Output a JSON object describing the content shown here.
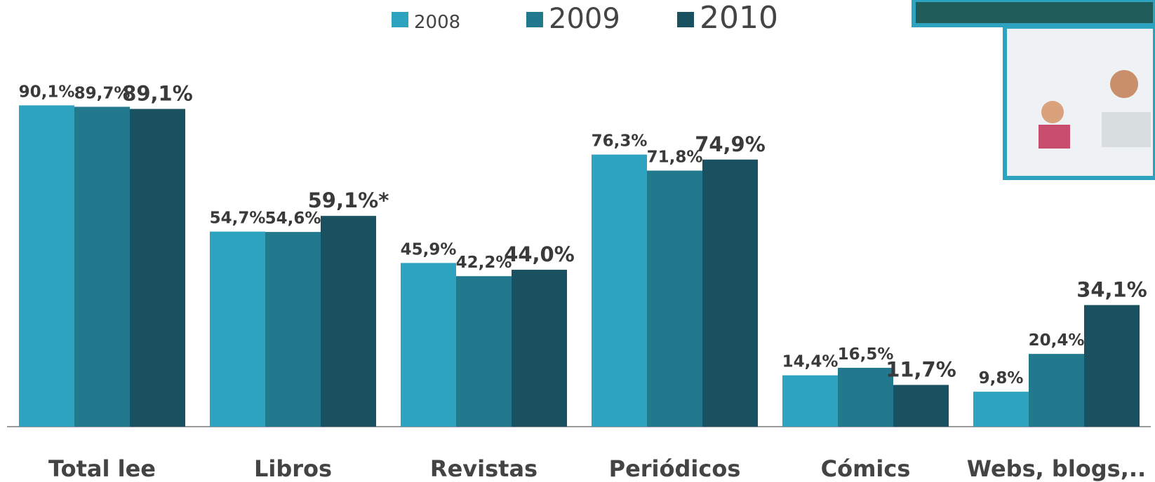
{
  "chart_data": {
    "type": "bar",
    "categories": [
      "Total lee",
      "Libros",
      "Revistas",
      "Periódicos",
      "Cómics",
      "Webs, blogs,.."
    ],
    "series": [
      {
        "name": "2008",
        "color": "#2ea3c0",
        "values": [
          90.1,
          54.7,
          45.9,
          76.3,
          14.4,
          9.8
        ],
        "value_labels": [
          "90,1%",
          "54,7%",
          "45,9%",
          "76,3%",
          "14,4%",
          "9,8%"
        ]
      },
      {
        "name": "2009",
        "color": "#22788c",
        "values": [
          89.7,
          54.6,
          42.2,
          71.8,
          16.5,
          20.4
        ],
        "value_labels": [
          "89,7%",
          "54,6%",
          "42,2%",
          "71,8%",
          "16,5%",
          "20,4%"
        ]
      },
      {
        "name": "2010",
        "color": "#1a5160",
        "values": [
          89.1,
          59.1,
          44.0,
          74.9,
          11.7,
          34.1
        ],
        "value_labels": [
          "89,1%",
          "59,1%*",
          "44,0%",
          "74,9%",
          "11,7%",
          "34,1%"
        ]
      }
    ],
    "ylim": [
      0,
      100
    ]
  }
}
